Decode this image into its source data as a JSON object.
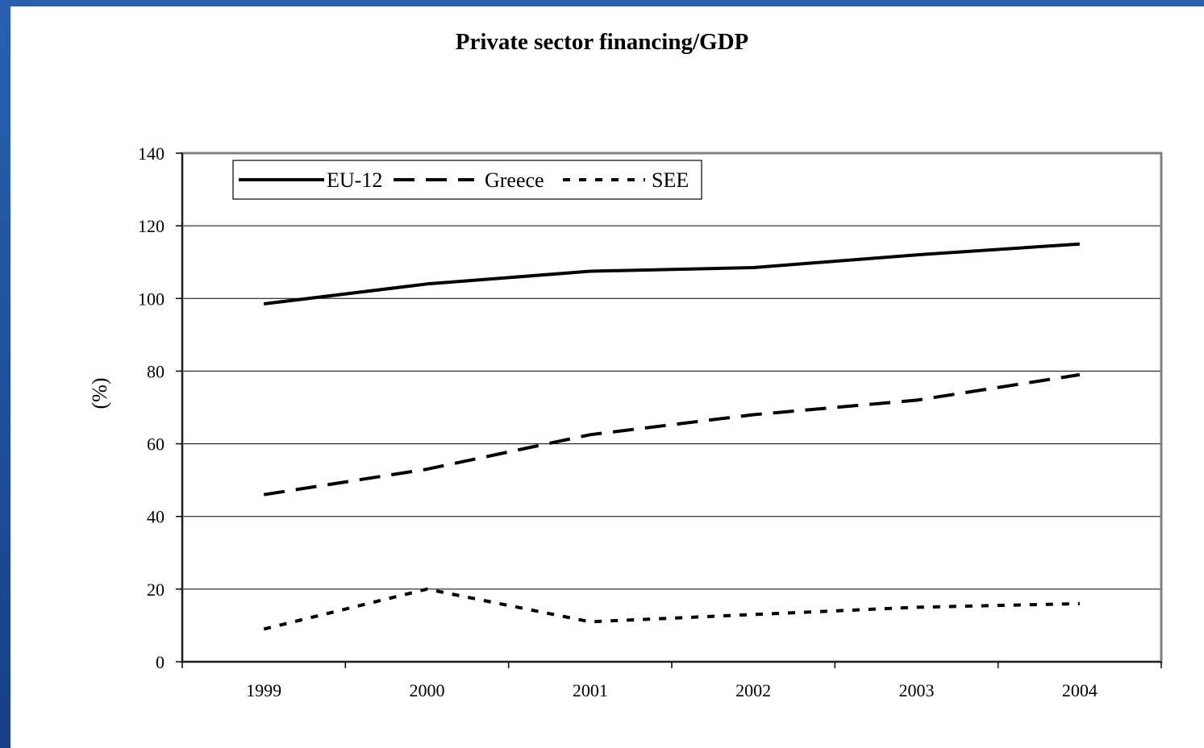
{
  "chart_data": {
    "type": "line",
    "title": "Private sector financing/GDP",
    "xlabel": "",
    "ylabel": "(%)",
    "categories": [
      "1999",
      "2000",
      "2001",
      "2002",
      "2003",
      "2004"
    ],
    "ylim": [
      0,
      140
    ],
    "yticks": [
      0,
      20,
      40,
      60,
      80,
      100,
      120,
      140
    ],
    "grid": true,
    "legend_position": "top-left",
    "series": [
      {
        "name": "EU-12",
        "style": "solid",
        "color": "#000000",
        "values": [
          98.5,
          104,
          107.5,
          108.5,
          112,
          115
        ]
      },
      {
        "name": "Greece",
        "style": "dashed",
        "color": "#000000",
        "values": [
          46,
          53,
          62.5,
          68,
          72,
          79
        ]
      },
      {
        "name": "SEE",
        "style": "dotted",
        "color": "#000000",
        "values": [
          9,
          20,
          11,
          13,
          15,
          16
        ]
      }
    ]
  },
  "colors": {
    "frame_blue": "#1f4f9c",
    "plot_border": "#808080",
    "gridline": "#000000"
  }
}
